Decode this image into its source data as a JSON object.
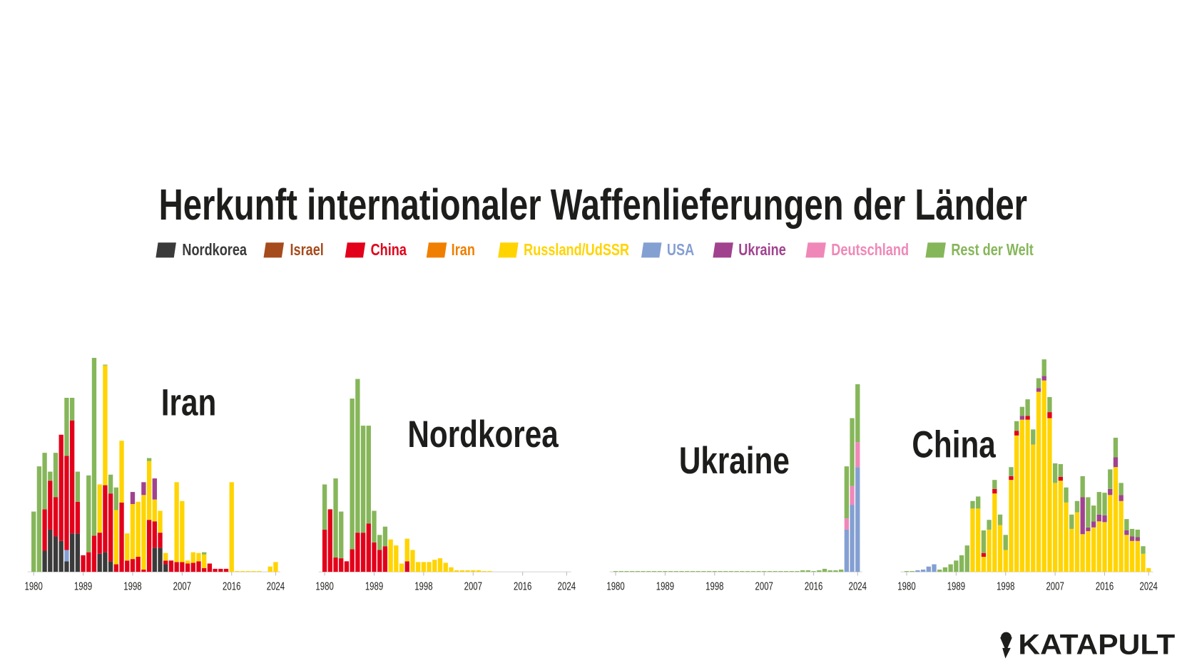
{
  "title": "Herkunft internationaler Waffenlieferungen der Länder",
  "legend": [
    {
      "name": "Nordkorea",
      "color": "#3a3a3a"
    },
    {
      "name": "Israel",
      "color": "#a64b1c"
    },
    {
      "name": "China",
      "color": "#e2001a"
    },
    {
      "name": "Iran",
      "color": "#f07f00"
    },
    {
      "name": "Russland/UdSSR",
      "color": "#ffd400"
    },
    {
      "name": "USA",
      "color": "#849fd2"
    },
    {
      "name": "Ukraine",
      "color": "#a1428f"
    },
    {
      "name": "Deutschland",
      "color": "#ef88b8"
    },
    {
      "name": "Rest der Welt",
      "color": "#86b65a"
    }
  ],
  "logo": "KATAPULT",
  "chart_data": [
    {
      "type": "bar",
      "stacked": true,
      "title": "Iran",
      "x": [
        1980,
        1981,
        1982,
        1983,
        1984,
        1985,
        1986,
        1987,
        1988,
        1989,
        1990,
        1991,
        1992,
        1993,
        1994,
        1995,
        1996,
        1997,
        1998,
        1999,
        2000,
        2001,
        2002,
        2003,
        2004,
        2005,
        2006,
        2007,
        2008,
        2009,
        2010,
        2011,
        2012,
        2013,
        2014,
        2015,
        2016,
        2017,
        2018,
        2019,
        2020,
        2021,
        2022,
        2023,
        2024
      ],
      "xlim": [
        1980,
        2024
      ],
      "xticks": [
        1980,
        1989,
        1998,
        2007,
        2016,
        2024
      ],
      "ylim": [
        0,
        290
      ],
      "series": [
        {
          "name": "Nordkorea",
          "values": [
            0,
            0,
            28,
            56,
            47,
            41,
            14,
            51,
            51,
            0,
            0,
            0,
            24,
            26,
            14,
            0,
            0,
            0,
            0,
            0,
            0,
            0,
            32,
            32,
            10,
            0,
            0,
            0,
            0,
            0,
            0,
            0,
            0,
            0,
            0,
            0,
            0,
            0,
            0,
            0,
            0,
            0,
            0,
            0,
            0
          ]
        },
        {
          "name": "USA",
          "values": [
            0,
            0,
            0,
            0,
            0,
            0,
            15,
            0,
            0,
            0,
            0,
            0,
            0,
            0,
            0,
            0,
            0,
            0,
            0,
            0,
            0,
            0,
            0,
            0,
            0,
            0,
            0,
            0,
            0,
            0,
            0,
            0,
            0,
            0,
            0,
            0,
            0,
            0,
            0,
            0,
            0,
            0,
            0,
            0,
            0
          ]
        },
        {
          "name": "China",
          "values": [
            0,
            0,
            55,
            65,
            52,
            141,
            125,
            150,
            42,
            22,
            26,
            48,
            28,
            89,
            90,
            10,
            92,
            15,
            17,
            20,
            3,
            69,
            35,
            20,
            5,
            15,
            13,
            13,
            11,
            12,
            14,
            5,
            11,
            4,
            4,
            4,
            0,
            0,
            0,
            0,
            0,
            0,
            0,
            0,
            0
          ]
        },
        {
          "name": "Russland/UdSSR",
          "values": [
            0,
            0,
            0,
            0,
            0,
            0,
            0,
            0,
            0,
            0,
            0,
            0,
            64,
            159,
            0,
            72,
            82,
            36,
            73,
            73,
            99,
            78,
            29,
            29,
            10,
            0,
            106,
            81,
            4,
            14,
            11,
            18,
            0,
            0,
            0,
            0,
            119,
            1,
            1,
            1,
            1,
            1,
            0,
            7,
            13
          ]
        },
        {
          "name": "Ukraine",
          "values": [
            0,
            0,
            0,
            0,
            0,
            0,
            0,
            0,
            0,
            0,
            0,
            0,
            0,
            0,
            0,
            0,
            0,
            0,
            16,
            0,
            17,
            0,
            28,
            0,
            0,
            0,
            0,
            0,
            0,
            0,
            0,
            0,
            0,
            0,
            0,
            0,
            0,
            0,
            0,
            0,
            0,
            0,
            0,
            0,
            0
          ]
        },
        {
          "name": "Rest der Welt",
          "values": [
            80,
            140,
            75,
            12,
            59,
            0,
            77,
            30,
            40,
            0,
            102,
            236,
            0,
            1,
            25,
            30,
            0,
            0,
            0,
            0,
            0,
            4,
            0,
            0,
            0,
            0,
            0,
            0,
            0,
            0,
            0,
            3,
            0,
            0,
            0,
            0,
            0,
            0,
            0,
            0,
            0,
            0,
            0,
            0,
            0
          ]
        }
      ]
    },
    {
      "type": "bar",
      "stacked": true,
      "title": "Nordkorea",
      "x": [
        1980,
        1981,
        1982,
        1983,
        1984,
        1985,
        1986,
        1987,
        1988,
        1989,
        1990,
        1991,
        1992,
        1993,
        1994,
        1995,
        1996,
        1997,
        1998,
        1999,
        2000,
        2001,
        2002,
        2003,
        2004,
        2005,
        2006,
        2007,
        2008,
        2009,
        2010,
        2011,
        2012,
        2013,
        2014,
        2015,
        2016,
        2017,
        2018,
        2019,
        2020,
        2021,
        2022,
        2023,
        2024
      ],
      "xlim": [
        1980,
        2024
      ],
      "xticks": [
        1980,
        1989,
        1998,
        2007,
        2016,
        2024
      ],
      "ylim": [
        0,
        290
      ],
      "series": [
        {
          "name": "China",
          "values": [
            56,
            83,
            19,
            18,
            14,
            30,
            52,
            52,
            64,
            39,
            29,
            34,
            0,
            0,
            0,
            14,
            0,
            0,
            0,
            0,
            0,
            0,
            0,
            0,
            0,
            0,
            0,
            0,
            0,
            0,
            0,
            0,
            0,
            0,
            0,
            0,
            0,
            0,
            0,
            0,
            0,
            0,
            0,
            0,
            0
          ]
        },
        {
          "name": "Russland/UdSSR",
          "values": [
            0,
            0,
            0,
            0,
            0,
            0,
            0,
            0,
            0,
            0,
            0,
            0,
            43,
            35,
            11,
            30,
            29,
            13,
            13,
            13,
            16,
            18,
            12,
            6,
            2,
            2,
            2,
            2,
            2,
            1,
            1,
            0,
            0,
            0,
            0,
            0,
            0,
            0,
            0,
            0,
            0,
            0,
            0,
            0,
            0
          ]
        },
        {
          "name": "Rest der Welt",
          "values": [
            60,
            0,
            105,
            62,
            0,
            200,
            204,
            142,
            130,
            42,
            20,
            26,
            0,
            0,
            0,
            0,
            0,
            0,
            0,
            0,
            0,
            0,
            0,
            0,
            0,
            0,
            0,
            0,
            0,
            0,
            0,
            0,
            0,
            0,
            0,
            0,
            0,
            0,
            0,
            0,
            0,
            0,
            0,
            0,
            0
          ]
        }
      ]
    },
    {
      "type": "bar",
      "stacked": true,
      "title": "Ukraine",
      "x": [
        1980,
        1981,
        1982,
        1983,
        1984,
        1985,
        1986,
        1987,
        1988,
        1989,
        1990,
        1991,
        1992,
        1993,
        1994,
        1995,
        1996,
        1997,
        1998,
        1999,
        2000,
        2001,
        2002,
        2003,
        2004,
        2005,
        2006,
        2007,
        2008,
        2009,
        2010,
        2011,
        2012,
        2013,
        2014,
        2015,
        2016,
        2017,
        2018,
        2019,
        2020,
        2021,
        2022,
        2023,
        2024
      ],
      "xlim": [
        1980,
        2024
      ],
      "xticks": [
        1980,
        1989,
        1998,
        2007,
        2016,
        2024
      ],
      "ylim": [
        0,
        290
      ],
      "series": [
        {
          "name": "USA",
          "values": [
            0,
            0,
            0,
            0,
            0,
            0,
            0,
            0,
            0,
            0,
            0,
            0,
            0,
            0,
            0,
            0,
            0,
            0,
            0,
            0,
            0,
            0,
            0,
            0,
            0,
            0,
            0,
            0,
            0,
            0,
            0,
            0,
            0,
            0,
            0,
            0,
            0,
            0,
            0,
            0,
            0,
            0,
            56,
            89,
            139
          ]
        },
        {
          "name": "Deutschland",
          "values": [
            0,
            0,
            0,
            0,
            0,
            0,
            0,
            0,
            0,
            0,
            0,
            0,
            0,
            0,
            0,
            0,
            0,
            0,
            0,
            0,
            0,
            0,
            0,
            0,
            0,
            0,
            0,
            0,
            0,
            0,
            0,
            0,
            0,
            0,
            0,
            0,
            0,
            0,
            0,
            0,
            0,
            0,
            15,
            25,
            33
          ]
        },
        {
          "name": "Rest der Welt",
          "values": [
            1,
            1,
            1,
            1,
            1,
            1,
            1,
            1,
            1,
            1,
            1,
            1,
            1,
            1,
            1,
            1,
            1,
            1,
            1,
            1,
            1,
            1,
            1,
            1,
            1,
            1,
            1,
            1,
            1,
            1,
            1,
            1,
            1,
            1,
            2,
            2,
            1,
            2,
            4,
            2,
            2,
            3,
            69,
            90,
            77
          ]
        }
      ]
    },
    {
      "type": "bar",
      "stacked": true,
      "title": "China",
      "x": [
        1980,
        1981,
        1982,
        1983,
        1984,
        1985,
        1986,
        1987,
        1988,
        1989,
        1990,
        1991,
        1992,
        1993,
        1994,
        1995,
        1996,
        1997,
        1998,
        1999,
        2000,
        2001,
        2002,
        2003,
        2004,
        2005,
        2006,
        2007,
        2008,
        2009,
        2010,
        2011,
        2012,
        2013,
        2014,
        2015,
        2016,
        2017,
        2018,
        2019,
        2020,
        2021,
        2022,
        2023,
        2024
      ],
      "xlim": [
        1980,
        2024
      ],
      "xticks": [
        1980,
        1989,
        1998,
        2007,
        2016,
        2024
      ],
      "ylim": [
        0,
        290
      ],
      "series": [
        {
          "name": "USA",
          "values": [
            0,
            0,
            2,
            3,
            7,
            10,
            0,
            0,
            0,
            0,
            0,
            0,
            0,
            0,
            0,
            0,
            0,
            0,
            0,
            0,
            0,
            0,
            0,
            0,
            0,
            0,
            0,
            0,
            0,
            0,
            0,
            0,
            0,
            0,
            0,
            0,
            0,
            0,
            0,
            0,
            0,
            0,
            0,
            0,
            0
          ]
        },
        {
          "name": "Russland/UdSSR",
          "values": [
            0,
            0,
            0,
            0,
            0,
            0,
            0,
            0,
            0,
            0,
            0,
            0,
            84,
            84,
            20,
            56,
            104,
            62,
            29,
            122,
            181,
            202,
            202,
            169,
            239,
            254,
            204,
            118,
            121,
            92,
            57,
            79,
            50,
            54,
            59,
            67,
            66,
            102,
            139,
            94,
            49,
            41,
            41,
            24,
            5
          ]
        },
        {
          "name": "China",
          "values": [
            0,
            0,
            0,
            0,
            0,
            0,
            0,
            0,
            0,
            0,
            0,
            0,
            0,
            0,
            5,
            0,
            6,
            0,
            0,
            5,
            6,
            0,
            5,
            0,
            0,
            0,
            8,
            0,
            5,
            0,
            0,
            0,
            0,
            0,
            0,
            0,
            0,
            0,
            0,
            0,
            0,
            0,
            0,
            0,
            0
          ]
        },
        {
          "name": "Ukraine",
          "values": [
            0,
            0,
            0,
            0,
            0,
            0,
            0,
            0,
            0,
            0,
            0,
            0,
            0,
            0,
            0,
            0,
            0,
            0,
            0,
            0,
            0,
            5,
            0,
            0,
            5,
            6,
            0,
            0,
            0,
            0,
            0,
            0,
            49,
            5,
            8,
            9,
            9,
            8,
            13,
            8,
            6,
            6,
            5,
            0,
            0
          ]
        },
        {
          "name": "Rest der Welt",
          "values": [
            1,
            1,
            0,
            0,
            0,
            0,
            3,
            6,
            10,
            15,
            22,
            35,
            10,
            16,
            30,
            13,
            12,
            14,
            20,
            12,
            13,
            12,
            22,
            20,
            13,
            22,
            20,
            26,
            17,
            20,
            19,
            15,
            28,
            40,
            21,
            30,
            30,
            26,
            26,
            16,
            15,
            10,
            10,
            10,
            0
          ]
        }
      ]
    }
  ]
}
